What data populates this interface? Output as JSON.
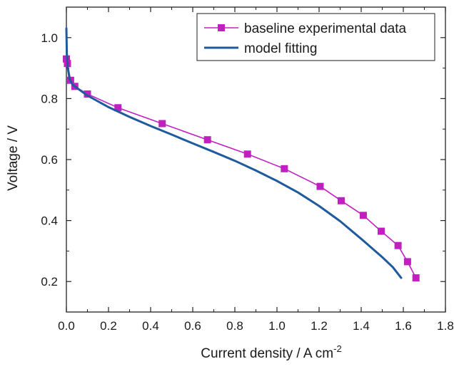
{
  "chart_data": {
    "type": "line",
    "title": "",
    "xlabel": "Current density / A cm",
    "xlabel_sup": "-2",
    "ylabel": "Voltage / V",
    "xlim": [
      0,
      1.8
    ],
    "ylim": [
      0.1,
      1.1
    ],
    "xticks": [
      "0.0",
      "0.2",
      "0.4",
      "0.6",
      "0.8",
      "1.0",
      "1.2",
      "1.4",
      "1.6",
      "1.8"
    ],
    "yticks": [
      "0.2",
      "0.4",
      "0.6",
      "0.8",
      "1.0"
    ],
    "legend_position": "top-right",
    "series": [
      {
        "name": "baseline experimental data",
        "color": "#c020c0",
        "marker": "square",
        "x": [
          0.0,
          0.005,
          0.02,
          0.04,
          0.1,
          0.245,
          0.455,
          0.67,
          0.86,
          1.035,
          1.205,
          1.305,
          1.41,
          1.495,
          1.575,
          1.62,
          1.66
        ],
        "y": [
          0.93,
          0.915,
          0.86,
          0.84,
          0.815,
          0.77,
          0.718,
          0.665,
          0.618,
          0.57,
          0.512,
          0.465,
          0.417,
          0.365,
          0.318,
          0.265,
          0.212
        ]
      },
      {
        "name": "model fitting",
        "color": "#1f5a9c",
        "marker": "none",
        "x": [
          0.0,
          0.002,
          0.006,
          0.015,
          0.03,
          0.06,
          0.1,
          0.2,
          0.3,
          0.4,
          0.5,
          0.6,
          0.7,
          0.8,
          0.9,
          1.0,
          1.1,
          1.2,
          1.3,
          1.4,
          1.5,
          1.55,
          1.59
        ],
        "y": [
          1.03,
          0.95,
          0.905,
          0.865,
          0.845,
          0.83,
          0.81,
          0.772,
          0.74,
          0.71,
          0.682,
          0.653,
          0.625,
          0.596,
          0.564,
          0.53,
          0.492,
          0.448,
          0.398,
          0.34,
          0.28,
          0.247,
          0.212
        ]
      }
    ]
  }
}
